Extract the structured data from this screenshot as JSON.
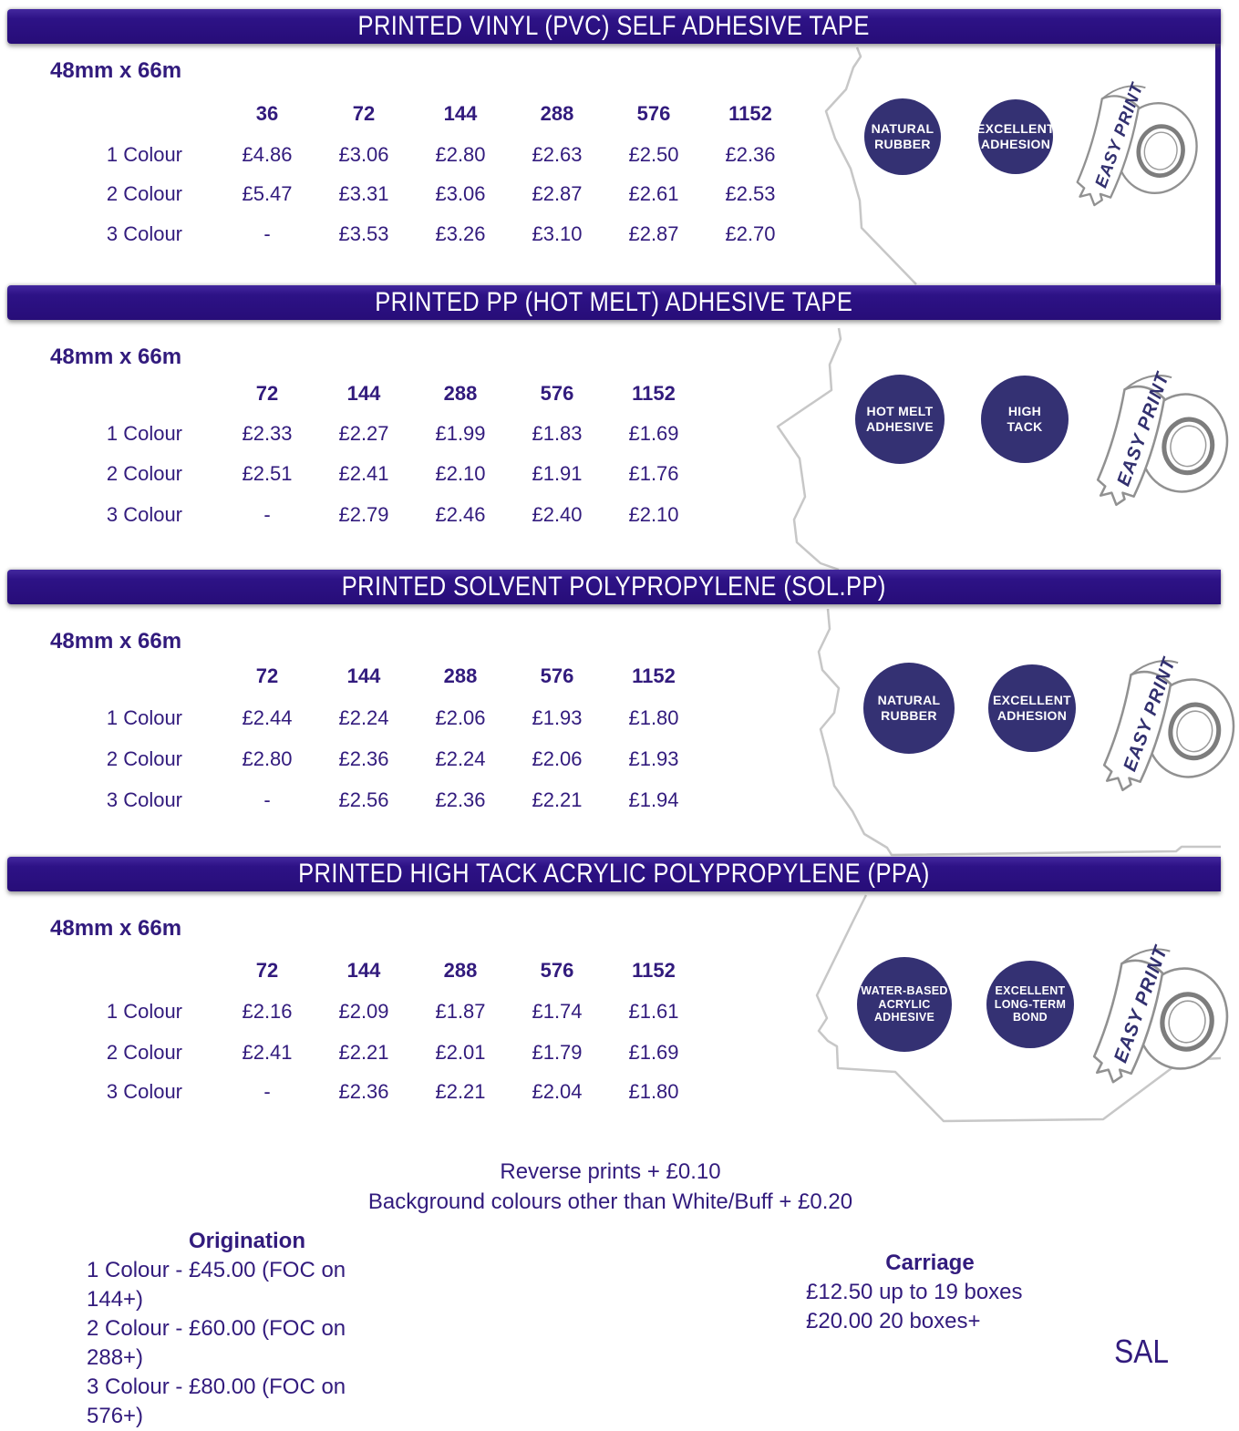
{
  "colors": {
    "header_bar": "#2b1180",
    "badge_circle": "#343173",
    "text": "#321b7d",
    "bar_text": "#ffffff",
    "torn_outline": "#c7c7c7"
  },
  "sections": [
    {
      "title": "PRINTED VINYL (PVC) SELF ADHESIVE TAPE",
      "size": "48mm x 66m",
      "quantities": [
        "36",
        "72",
        "144",
        "288",
        "576",
        "1152"
      ],
      "rows": [
        {
          "label": "1 Colour",
          "prices": [
            "£4.86",
            "£3.06",
            "£2.80",
            "£2.63",
            "£2.50",
            "£2.36"
          ]
        },
        {
          "label": "2 Colour",
          "prices": [
            "£5.47",
            "£3.31",
            "£3.06",
            "£2.87",
            "£2.61",
            "£2.53"
          ]
        },
        {
          "label": "3 Colour",
          "prices": [
            "-",
            "£3.53",
            "£3.26",
            "£3.10",
            "£2.87",
            "£2.70"
          ]
        }
      ],
      "badges": [
        [
          "NATURAL",
          "RUBBER"
        ],
        [
          "EXCELLENT",
          "ADHESION"
        ]
      ],
      "roll_label": "EASY PRINT"
    },
    {
      "title": "PRINTED PP (HOT MELT) ADHESIVE TAPE",
      "size": "48mm x 66m",
      "quantities": [
        "72",
        "144",
        "288",
        "576",
        "1152"
      ],
      "rows": [
        {
          "label": "1 Colour",
          "prices": [
            "£2.33",
            "£2.27",
            "£1.99",
            "£1.83",
            "£1.69"
          ]
        },
        {
          "label": "2 Colour",
          "prices": [
            "£2.51",
            "£2.41",
            "£2.10",
            "£1.91",
            "£1.76"
          ]
        },
        {
          "label": "3 Colour",
          "prices": [
            "-",
            "£2.79",
            "£2.46",
            "£2.40",
            "£2.10"
          ]
        }
      ],
      "badges": [
        [
          "HOT MELT",
          "ADHESIVE"
        ],
        [
          "HIGH",
          "TACK"
        ]
      ],
      "roll_label": "EASY PRINT"
    },
    {
      "title": "PRINTED SOLVENT POLYPROPYLENE (SOL.PP)",
      "size": "48mm x 66m",
      "quantities": [
        "72",
        "144",
        "288",
        "576",
        "1152"
      ],
      "rows": [
        {
          "label": "1 Colour",
          "prices": [
            "£2.44",
            "£2.24",
            "£2.06",
            "£1.93",
            "£1.80"
          ]
        },
        {
          "label": "2 Colour",
          "prices": [
            "£2.80",
            "£2.36",
            "£2.24",
            "£2.06",
            "£1.93"
          ]
        },
        {
          "label": "3 Colour",
          "prices": [
            "-",
            "£2.56",
            "£2.36",
            "£2.21",
            "£1.94"
          ]
        }
      ],
      "badges": [
        [
          "NATURAL",
          "RUBBER"
        ],
        [
          "EXCELLENT",
          "ADHESION"
        ]
      ],
      "roll_label": "EASY PRINT"
    },
    {
      "title": "PRINTED HIGH TACK ACRYLIC POLYPROPYLENE (PPA)",
      "size": "48mm x 66m",
      "quantities": [
        "72",
        "144",
        "288",
        "576",
        "1152"
      ],
      "rows": [
        {
          "label": "1 Colour",
          "prices": [
            "£2.16",
            "£2.09",
            "£1.87",
            "£1.74",
            "£1.61"
          ]
        },
        {
          "label": "2 Colour",
          "prices": [
            "£2.41",
            "£2.21",
            "£2.01",
            "£1.79",
            "£1.69"
          ]
        },
        {
          "label": "3 Colour",
          "prices": [
            "-",
            "£2.36",
            "£2.21",
            "£2.04",
            "£1.80"
          ]
        }
      ],
      "badges": [
        [
          "WATER-BASED",
          "ACRYLIC",
          "ADHESIVE"
        ],
        [
          "EXCELLENT",
          "LONG-TERM",
          "BOND"
        ]
      ],
      "roll_label": "EASY PRINT"
    }
  ],
  "footer": {
    "note_1": "Reverse prints + £0.10",
    "note_2": "Background colours other than White/Buff + £0.20",
    "origination": {
      "heading": "Origination",
      "lines": [
        "1 Colour - £45.00 (FOC on 144+)",
        "2 Colour - £60.00 (FOC on 288+)",
        "3 Colour - £80.00 (FOC on 576+)"
      ]
    },
    "carriage": {
      "heading": "Carriage",
      "lines": [
        "£12.50 up to 19 boxes",
        "£20.00 20 boxes+"
      ]
    },
    "code": "SAL"
  }
}
